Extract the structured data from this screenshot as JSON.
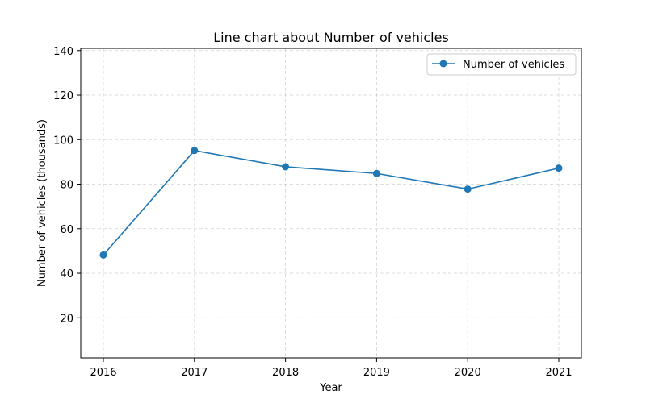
{
  "chart_data": {
    "type": "line",
    "title": "Line chart about Number of vehicles",
    "xlabel": "Year",
    "ylabel": "Number of vehicles (thousands)",
    "categories": [
      "2016",
      "2017",
      "2018",
      "2019",
      "2020",
      "2021"
    ],
    "series": [
      {
        "name": "Number of vehicles",
        "values": [
          48.2,
          95.1,
          87.8,
          84.8,
          77.8,
          87.2
        ]
      }
    ],
    "ylim": [
      2,
      141
    ],
    "yticks": [
      20,
      40,
      60,
      80,
      100,
      120,
      140
    ],
    "grid": true,
    "legend_position": "top-right",
    "colors": {
      "series": "#1f77b4",
      "grid": "#b0b0b0",
      "axis": "#000000"
    }
  }
}
